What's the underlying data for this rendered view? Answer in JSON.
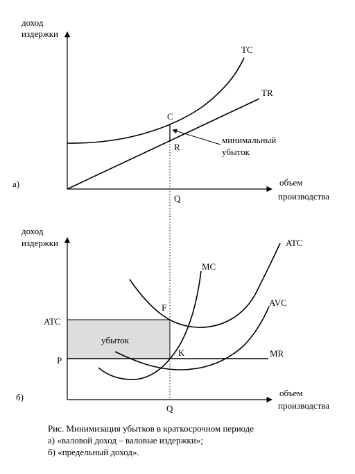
{
  "top_panel": {
    "panel_label": "а)",
    "y_axis_label": [
      "доход",
      "издержки"
    ],
    "x_axis_label": [
      "объем",
      "производства"
    ],
    "curves": {
      "tc": "TC",
      "tr": "TR"
    },
    "points": {
      "c": "C",
      "r": "R",
      "q": "Q"
    },
    "annotation": [
      "минимальный",
      "убыток"
    ]
  },
  "bottom_panel": {
    "panel_label": "б)",
    "y_axis_label": [
      "доход",
      "издержки"
    ],
    "x_axis_label": [
      "объем",
      "производства"
    ],
    "curves": {
      "atc": "ATC",
      "mc": "MC",
      "avc": "AVC",
      "mr": "MR"
    },
    "y_ticks": {
      "atc": "ATC",
      "p": "P"
    },
    "points": {
      "f": "F",
      "k": "K",
      "q": "Q"
    },
    "area_label": "убыток",
    "loss_fill_color": "#dddddd"
  },
  "caption": {
    "line1": "Рис. Минимизация убытков в краткосрочном периоде",
    "line2": "а) «валовой доход – валовые издержки»;",
    "line3": "б) «предельный доход»."
  }
}
